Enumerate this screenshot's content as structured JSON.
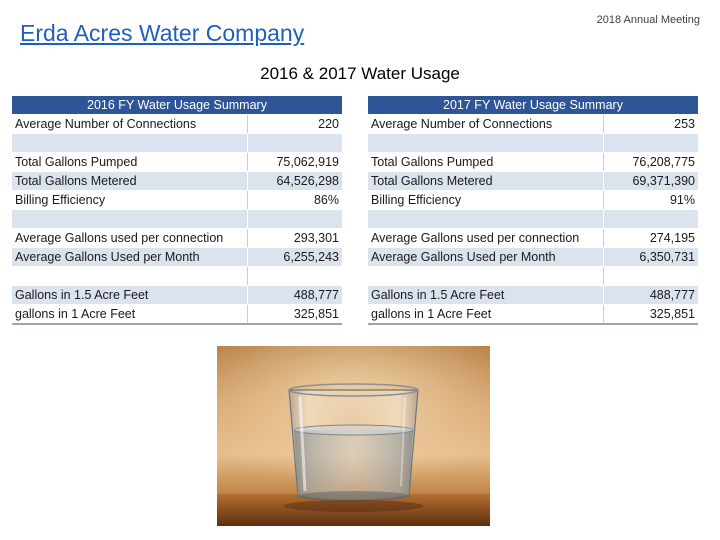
{
  "header": {
    "company_title": "Erda Acres Water Company",
    "meeting_label": "2018 Annual Meeting",
    "subtitle": "2016 & 2017 Water Usage"
  },
  "tables": [
    {
      "title": "2016 FY Water Usage Summary",
      "rows": [
        {
          "label": "Average Number of Connections",
          "value": "220"
        },
        {
          "label": "",
          "value": ""
        },
        {
          "label": "Total Gallons Pumped",
          "value": "75,062,919"
        },
        {
          "label": "Total Gallons Metered",
          "value": "64,526,298"
        },
        {
          "label": "Billing Efficiency",
          "value": "86%"
        },
        {
          "label": "",
          "value": ""
        },
        {
          "label": "Average Gallons used per connection",
          "value": "293,301"
        },
        {
          "label": "Average Gallons Used per Month",
          "value": "6,255,243"
        },
        {
          "label": "",
          "value": ""
        },
        {
          "label": "Gallons in 1.5 Acre Feet",
          "value": "488,777"
        },
        {
          "label": "gallons in 1 Acre Feet",
          "value": "325,851"
        }
      ]
    },
    {
      "title": "2017 FY Water Usage Summary",
      "rows": [
        {
          "label": "Average Number of Connections",
          "value": "253"
        },
        {
          "label": "",
          "value": ""
        },
        {
          "label": "Total Gallons Pumped",
          "value": "76,208,775"
        },
        {
          "label": "Total Gallons Metered",
          "value": "69,371,390"
        },
        {
          "label": "Billing Efficiency",
          "value": "91%"
        },
        {
          "label": "",
          "value": ""
        },
        {
          "label": "Average Gallons used per connection",
          "value": "274,195"
        },
        {
          "label": "Average Gallons Used per Month",
          "value": "6,350,731"
        },
        {
          "label": "",
          "value": ""
        },
        {
          "label": "Gallons in 1.5 Acre Feet",
          "value": "488,777"
        },
        {
          "label": "gallons in 1 Acre Feet",
          "value": "325,851"
        }
      ]
    }
  ],
  "photo": {
    "icon": "glass-of-water-photo"
  }
}
